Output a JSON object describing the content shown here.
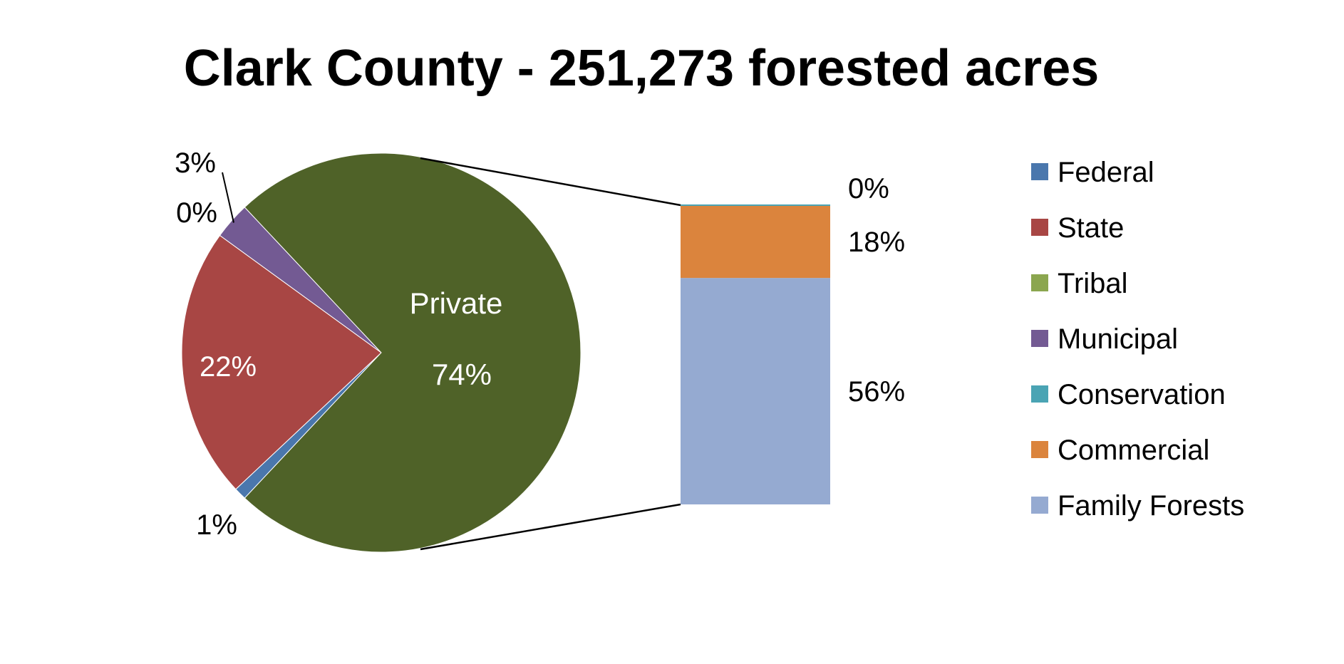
{
  "chart_data": {
    "type": "bar-of-pie",
    "title": "Clark County - 251,273 forested acres",
    "pie": {
      "slices": [
        {
          "name": "Federal",
          "value": 1,
          "label": "1%",
          "color": "#4a77ad"
        },
        {
          "name": "State",
          "value": 22,
          "label": "22%",
          "color": "#a84644"
        },
        {
          "name": "Tribal",
          "value": 0,
          "label": "0%",
          "color": "#8ba64f"
        },
        {
          "name": "Municipal",
          "value": 3,
          "label": "3%",
          "color": "#735a93"
        },
        {
          "name": "Private",
          "value": 74,
          "label": "74%",
          "category_label": "Private",
          "color": "#4f6228"
        }
      ]
    },
    "bar": {
      "segments": [
        {
          "name": "Family Forests",
          "value": 56,
          "label": "56%",
          "color": "#95aad1"
        },
        {
          "name": "Commercial",
          "value": 18,
          "label": "18%",
          "color": "#db843d"
        },
        {
          "name": "Conservation",
          "value": 0,
          "label": "0%",
          "color": "#4aa4b4"
        }
      ]
    },
    "legend": {
      "placement": "right",
      "entries": [
        {
          "name": "Federal",
          "color": "#4a77ad"
        },
        {
          "name": "State",
          "color": "#a84644"
        },
        {
          "name": "Tribal",
          "color": "#8ba64f"
        },
        {
          "name": "Municipal",
          "color": "#735a93"
        },
        {
          "name": "Conservation",
          "color": "#4aa4b4"
        },
        {
          "name": "Commercial",
          "color": "#db843d"
        },
        {
          "name": "Family Forests",
          "color": "#95aad1"
        }
      ]
    }
  }
}
